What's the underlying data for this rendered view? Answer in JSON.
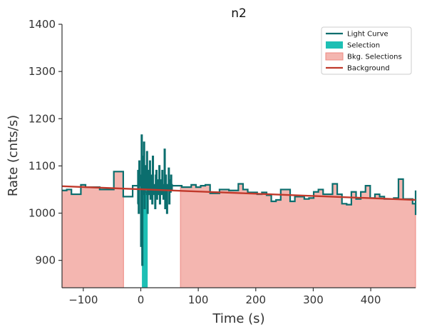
{
  "chart_data": {
    "type": "line",
    "title": "n2",
    "xlabel": "Time (s)",
    "ylabel": "Rate (cnts/s)",
    "xlim": [
      -137,
      478
    ],
    "ylim": [
      842,
      1400
    ],
    "xticks": [
      -100,
      0,
      100,
      200,
      300,
      400
    ],
    "yticks": [
      900,
      1000,
      1100,
      1200,
      1300,
      1400
    ],
    "legend_position": "top-right",
    "legend": [
      {
        "label": "Light Curve",
        "kind": "line",
        "color": "#0b6e6e"
      },
      {
        "label": "Selection",
        "kind": "patch",
        "color": "#1dbfb4"
      },
      {
        "label": "Bkg. Selections",
        "kind": "patch",
        "color": "#f4b6b0"
      },
      {
        "label": "Background",
        "kind": "line",
        "color": "#c0392b"
      }
    ],
    "colors": {
      "light_curve": "#0b6e6e",
      "selection": "#1dbfb4",
      "bkg_fill": "#f4b6b0",
      "bkg_edge": "#ee8880",
      "background": "#c0392b",
      "axis": "#333333"
    },
    "selection_interval": [
      2,
      12
    ],
    "bkg_intervals": [
      [
        -137,
        -30
      ],
      [
        69,
        478
      ]
    ],
    "background_fit": {
      "x": [
        -137,
        478
      ],
      "y": [
        1057,
        1028
      ]
    },
    "light_curve_coarse": {
      "start": -137,
      "step": 8.192,
      "rates": [
        1048,
        1050,
        1040,
        1040,
        1060,
        1055,
        1055,
        1055,
        1050,
        1050,
        1050,
        1088,
        1088,
        1035,
        1035,
        1058,
        1058,
        1045,
        1040,
        1045
      ]
    },
    "light_curve_fine": {
      "start": -6,
      "step": 1.024,
      "rates": [
        1020,
        1090,
        1000,
        1110,
        1080,
        1060,
        930,
        1165,
        890,
        1120,
        1040,
        1150,
        1010,
        1100,
        1070,
        1050,
        1130,
        1000,
        1090,
        1060,
        1040,
        1110,
        1030,
        1070,
        1080,
        1020,
        1120,
        1040,
        1060,
        1050,
        1010,
        1080,
        1090,
        1030,
        1070,
        1040,
        1060,
        1100,
        1020,
        1050,
        1070,
        1040,
        1090,
        1060,
        1030,
        1050,
        1135,
        1010,
        1080,
        1040,
        1000,
        1060,
        1050,
        1095,
        1020,
        1070,
        1045,
        1080,
        1060,
        1050
      ]
    },
    "light_curve_tail": {
      "start": 55,
      "step": 8.192,
      "rates": [
        1058,
        1058,
        1055,
        1055,
        1060,
        1055,
        1058,
        1060,
        1042,
        1042,
        1050,
        1050,
        1048,
        1048,
        1062,
        1050,
        1044,
        1044,
        1040,
        1044,
        1038,
        1025,
        1028,
        1050,
        1050,
        1025,
        1035,
        1035,
        1030,
        1032,
        1045,
        1050,
        1040,
        1040,
        1062,
        1040,
        1020,
        1018,
        1045,
        1030,
        1045,
        1058,
        1032,
        1040,
        1035,
        1030,
        1030,
        1032,
        1072,
        1030,
        1030,
        1020,
        1045,
        1030,
        1025,
        1048,
        1035,
        1032,
        1032,
        1045,
        1018,
        1010,
        1010,
        1000,
        1000,
        996
      ]
    }
  }
}
